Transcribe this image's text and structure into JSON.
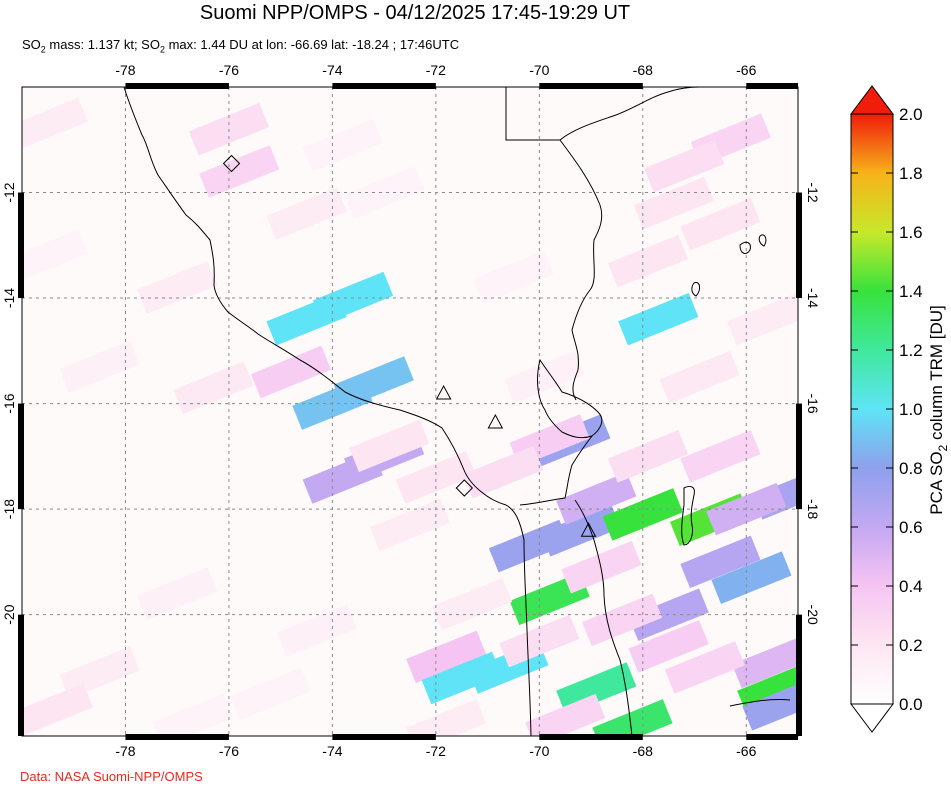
{
  "header": {
    "title": "Suomi NPP/OMPS - 04/12/2025 17:45-19:29 UT",
    "subtitle_parts": {
      "so2_a": "SO",
      "sub_a": "2",
      "mass": " mass: 1.137 kt; SO",
      "sub_b": "2",
      "rest": " max: 1.44 DU at lon: -66.69 lat: -18.24 ; 17:46UTC"
    }
  },
  "map": {
    "lon_labels": [
      "-78",
      "-76",
      "-74",
      "-72",
      "-70",
      "-68",
      "-66"
    ],
    "lat_labels": [
      "-12",
      "-14",
      "-16",
      "-18",
      "-20"
    ],
    "lon_range": [
      -80,
      -65
    ],
    "lat_range": [
      -10,
      -22.3
    ],
    "grid": true,
    "volcano_markers": [
      {
        "lon": -71.85,
        "lat": -15.8
      },
      {
        "lon": -70.85,
        "lat": -16.35
      },
      {
        "lon": -69.05,
        "lat": -18.4
      }
    ],
    "diamond_markers": [
      {
        "lon": -75.95,
        "lat": -11.45
      },
      {
        "lon": -71.45,
        "lat": -17.6
      }
    ],
    "pixels": [
      {
        "lon": -74.5,
        "lat": -14.4,
        "v": 1.0
      },
      {
        "lon": -73.6,
        "lat": -14.0,
        "v": 1.0
      },
      {
        "lon": -74.0,
        "lat": -16.0,
        "v": 0.9
      },
      {
        "lon": -73.2,
        "lat": -15.6,
        "v": 0.9
      },
      {
        "lon": -73.8,
        "lat": -17.4,
        "v": 0.6
      },
      {
        "lon": -73.0,
        "lat": -17.0,
        "v": 0.6
      },
      {
        "lon": -67.7,
        "lat": -14.4,
        "v": 1.0
      },
      {
        "lon": -70.2,
        "lat": -18.7,
        "v": 0.75
      },
      {
        "lon": -69.2,
        "lat": -18.4,
        "v": 0.75
      },
      {
        "lon": -68.9,
        "lat": -17.8,
        "v": 0.55
      },
      {
        "lon": -69.4,
        "lat": -16.7,
        "v": 0.75
      },
      {
        "lon": -68.0,
        "lat": -18.1,
        "v": 1.4
      },
      {
        "lon": -66.7,
        "lat": -18.2,
        "v": 1.44
      },
      {
        "lon": -69.8,
        "lat": -19.7,
        "v": 1.35
      },
      {
        "lon": -71.8,
        "lat": -20.8,
        "v": 0.4
      },
      {
        "lon": -71.5,
        "lat": -21.2,
        "v": 1.0
      },
      {
        "lon": -70.6,
        "lat": -21.0,
        "v": 1.0
      },
      {
        "lon": -68.9,
        "lat": -21.4,
        "v": 1.2
      },
      {
        "lon": -68.2,
        "lat": -22.1,
        "v": 1.3
      },
      {
        "lon": -67.5,
        "lat": -20.0,
        "v": 0.65
      },
      {
        "lon": -66.5,
        "lat": -19.0,
        "v": 0.65
      },
      {
        "lon": -65.9,
        "lat": -19.3,
        "v": 0.85
      },
      {
        "lon": -65.5,
        "lat": -20.9,
        "v": 0.5
      },
      {
        "lon": -65.4,
        "lat": -21.4,
        "v": 1.4
      },
      {
        "lon": -65.3,
        "lat": -21.7,
        "v": 0.75
      },
      {
        "lon": -65.1,
        "lat": -17.7,
        "v": 0.7
      },
      {
        "lon": -66.0,
        "lat": -18.0,
        "v": 0.55
      },
      {
        "lon": -74.8,
        "lat": -15.4,
        "v": 0.35
      },
      {
        "lon": -75.8,
        "lat": -11.6,
        "v": 0.3
      },
      {
        "lon": -76.0,
        "lat": -10.8,
        "v": 0.25
      },
      {
        "lon": -74.5,
        "lat": -12.4,
        "v": 0.15
      },
      {
        "lon": -73.0,
        "lat": -12.0,
        "v": 0.1
      },
      {
        "lon": -77.0,
        "lat": -13.8,
        "v": 0.15
      },
      {
        "lon": -78.5,
        "lat": -15.3,
        "v": 0.12
      },
      {
        "lon": -76.3,
        "lat": -15.7,
        "v": 0.18
      },
      {
        "lon": -72.9,
        "lat": -16.8,
        "v": 0.2
      },
      {
        "lon": -72.5,
        "lat": -18.3,
        "v": 0.15
      },
      {
        "lon": -72.0,
        "lat": -17.4,
        "v": 0.2
      },
      {
        "lon": -77.0,
        "lat": -19.6,
        "v": 0.12
      },
      {
        "lon": -78.5,
        "lat": -21.1,
        "v": 0.15
      },
      {
        "lon": -79.4,
        "lat": -21.8,
        "v": 0.2
      },
      {
        "lon": -75.2,
        "lat": -21.5,
        "v": 0.1
      },
      {
        "lon": -74.3,
        "lat": -20.3,
        "v": 0.12
      },
      {
        "lon": -69.9,
        "lat": -15.5,
        "v": 0.12
      },
      {
        "lon": -70.5,
        "lat": -13.6,
        "v": 0.1
      },
      {
        "lon": -67.9,
        "lat": -13.3,
        "v": 0.2
      },
      {
        "lon": -67.4,
        "lat": -12.2,
        "v": 0.2
      },
      {
        "lon": -66.3,
        "lat": -11.0,
        "v": 0.3
      },
      {
        "lon": -67.2,
        "lat": -11.5,
        "v": 0.25
      },
      {
        "lon": -66.5,
        "lat": -12.6,
        "v": 0.2
      },
      {
        "lon": -65.6,
        "lat": -14.4,
        "v": 0.15
      },
      {
        "lon": -66.9,
        "lat": -15.5,
        "v": 0.18
      },
      {
        "lon": -67.9,
        "lat": -17.0,
        "v": 0.25
      },
      {
        "lon": -66.5,
        "lat": -17.0,
        "v": 0.3
      },
      {
        "lon": -66.8,
        "lat": -21.0,
        "v": 0.3
      },
      {
        "lon": -67.5,
        "lat": -20.6,
        "v": 0.35
      },
      {
        "lon": -68.4,
        "lat": -20.1,
        "v": 0.3
      },
      {
        "lon": -68.8,
        "lat": -19.1,
        "v": 0.3
      },
      {
        "lon": -70.0,
        "lat": -20.5,
        "v": 0.25
      },
      {
        "lon": -71.3,
        "lat": -19.8,
        "v": 0.15
      },
      {
        "lon": -69.5,
        "lat": -22.0,
        "v": 0.3
      },
      {
        "lon": -71.8,
        "lat": -22.1,
        "v": 0.15
      },
      {
        "lon": -79.5,
        "lat": -10.7,
        "v": 0.15
      },
      {
        "lon": -79.5,
        "lat": -13.2,
        "v": 0.1
      },
      {
        "lon": -76.7,
        "lat": -22.0,
        "v": 0.1
      },
      {
        "lon": -73.8,
        "lat": -11.1,
        "v": 0.1
      },
      {
        "lon": -69.8,
        "lat": -16.7,
        "v": 0.35
      },
      {
        "lon": -70.7,
        "lat": -17.3,
        "v": 0.25
      }
    ]
  },
  "colorbar": {
    "title": "PCA SO",
    "title_sub": "2",
    "title_rest": " column TRM [DU]",
    "labels": [
      "0.0",
      "0.2",
      "0.4",
      "0.6",
      "0.8",
      "1.0",
      "1.2",
      "1.4",
      "1.6",
      "1.8",
      "2.0"
    ],
    "min": 0.0,
    "max": 2.0
  },
  "credit": "Data: NASA Suomi-NPP/OMPS"
}
